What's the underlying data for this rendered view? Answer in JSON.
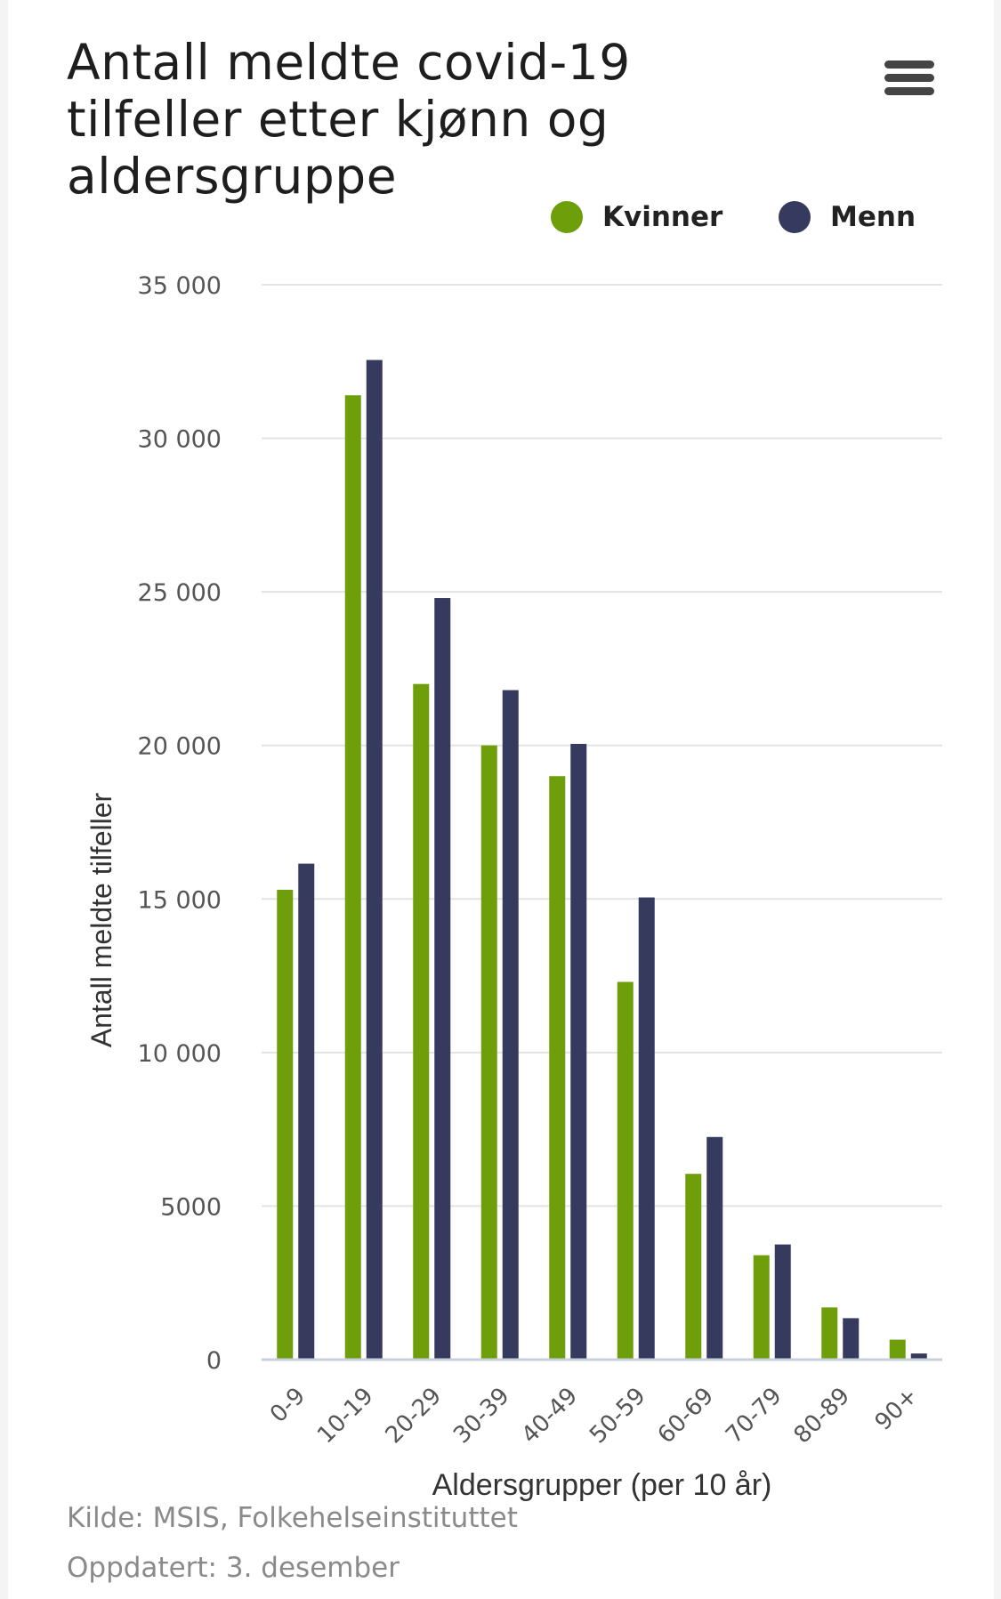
{
  "menu": {
    "icon": "hamburger-menu-icon"
  },
  "legend": {
    "items": [
      {
        "label": "Kvinner",
        "color": "#6e9e0a"
      },
      {
        "label": "Menn",
        "color": "#363a5e"
      }
    ]
  },
  "footer": {
    "source": "Kilde: MSIS, Folkehelseinstituttet",
    "updated": "Oppdatert: 3. desember"
  },
  "chart_data": {
    "type": "bar",
    "title": "Antall meldte covid-19 tilfeller etter kjønn og aldersgruppe",
    "xlabel": "Aldersgrupper (per 10 år)",
    "ylabel": "Antall meldte tilfeller",
    "categories": [
      "0-9",
      "10-19",
      "20-29",
      "30-39",
      "40-49",
      "50-59",
      "60-69",
      "70-79",
      "80-89",
      "90+"
    ],
    "series": [
      {
        "name": "Kvinner",
        "color": "#6e9e0a",
        "values": [
          15300,
          31400,
          22000,
          20000,
          19000,
          12300,
          6050,
          3400,
          1700,
          650
        ]
      },
      {
        "name": "Menn",
        "color": "#363a5e",
        "values": [
          16150,
          32550,
          24800,
          21800,
          20050,
          15050,
          7250,
          3750,
          1350,
          200
        ]
      }
    ],
    "ylim": [
      0,
      35000
    ],
    "yticks": [
      0,
      5000,
      10000,
      15000,
      20000,
      25000,
      30000,
      35000
    ],
    "ytick_labels": [
      "0",
      "5000",
      "10 000",
      "15 000",
      "20 000",
      "25 000",
      "30 000",
      "35 000"
    ],
    "grid": true,
    "legend_position": "top-right"
  }
}
